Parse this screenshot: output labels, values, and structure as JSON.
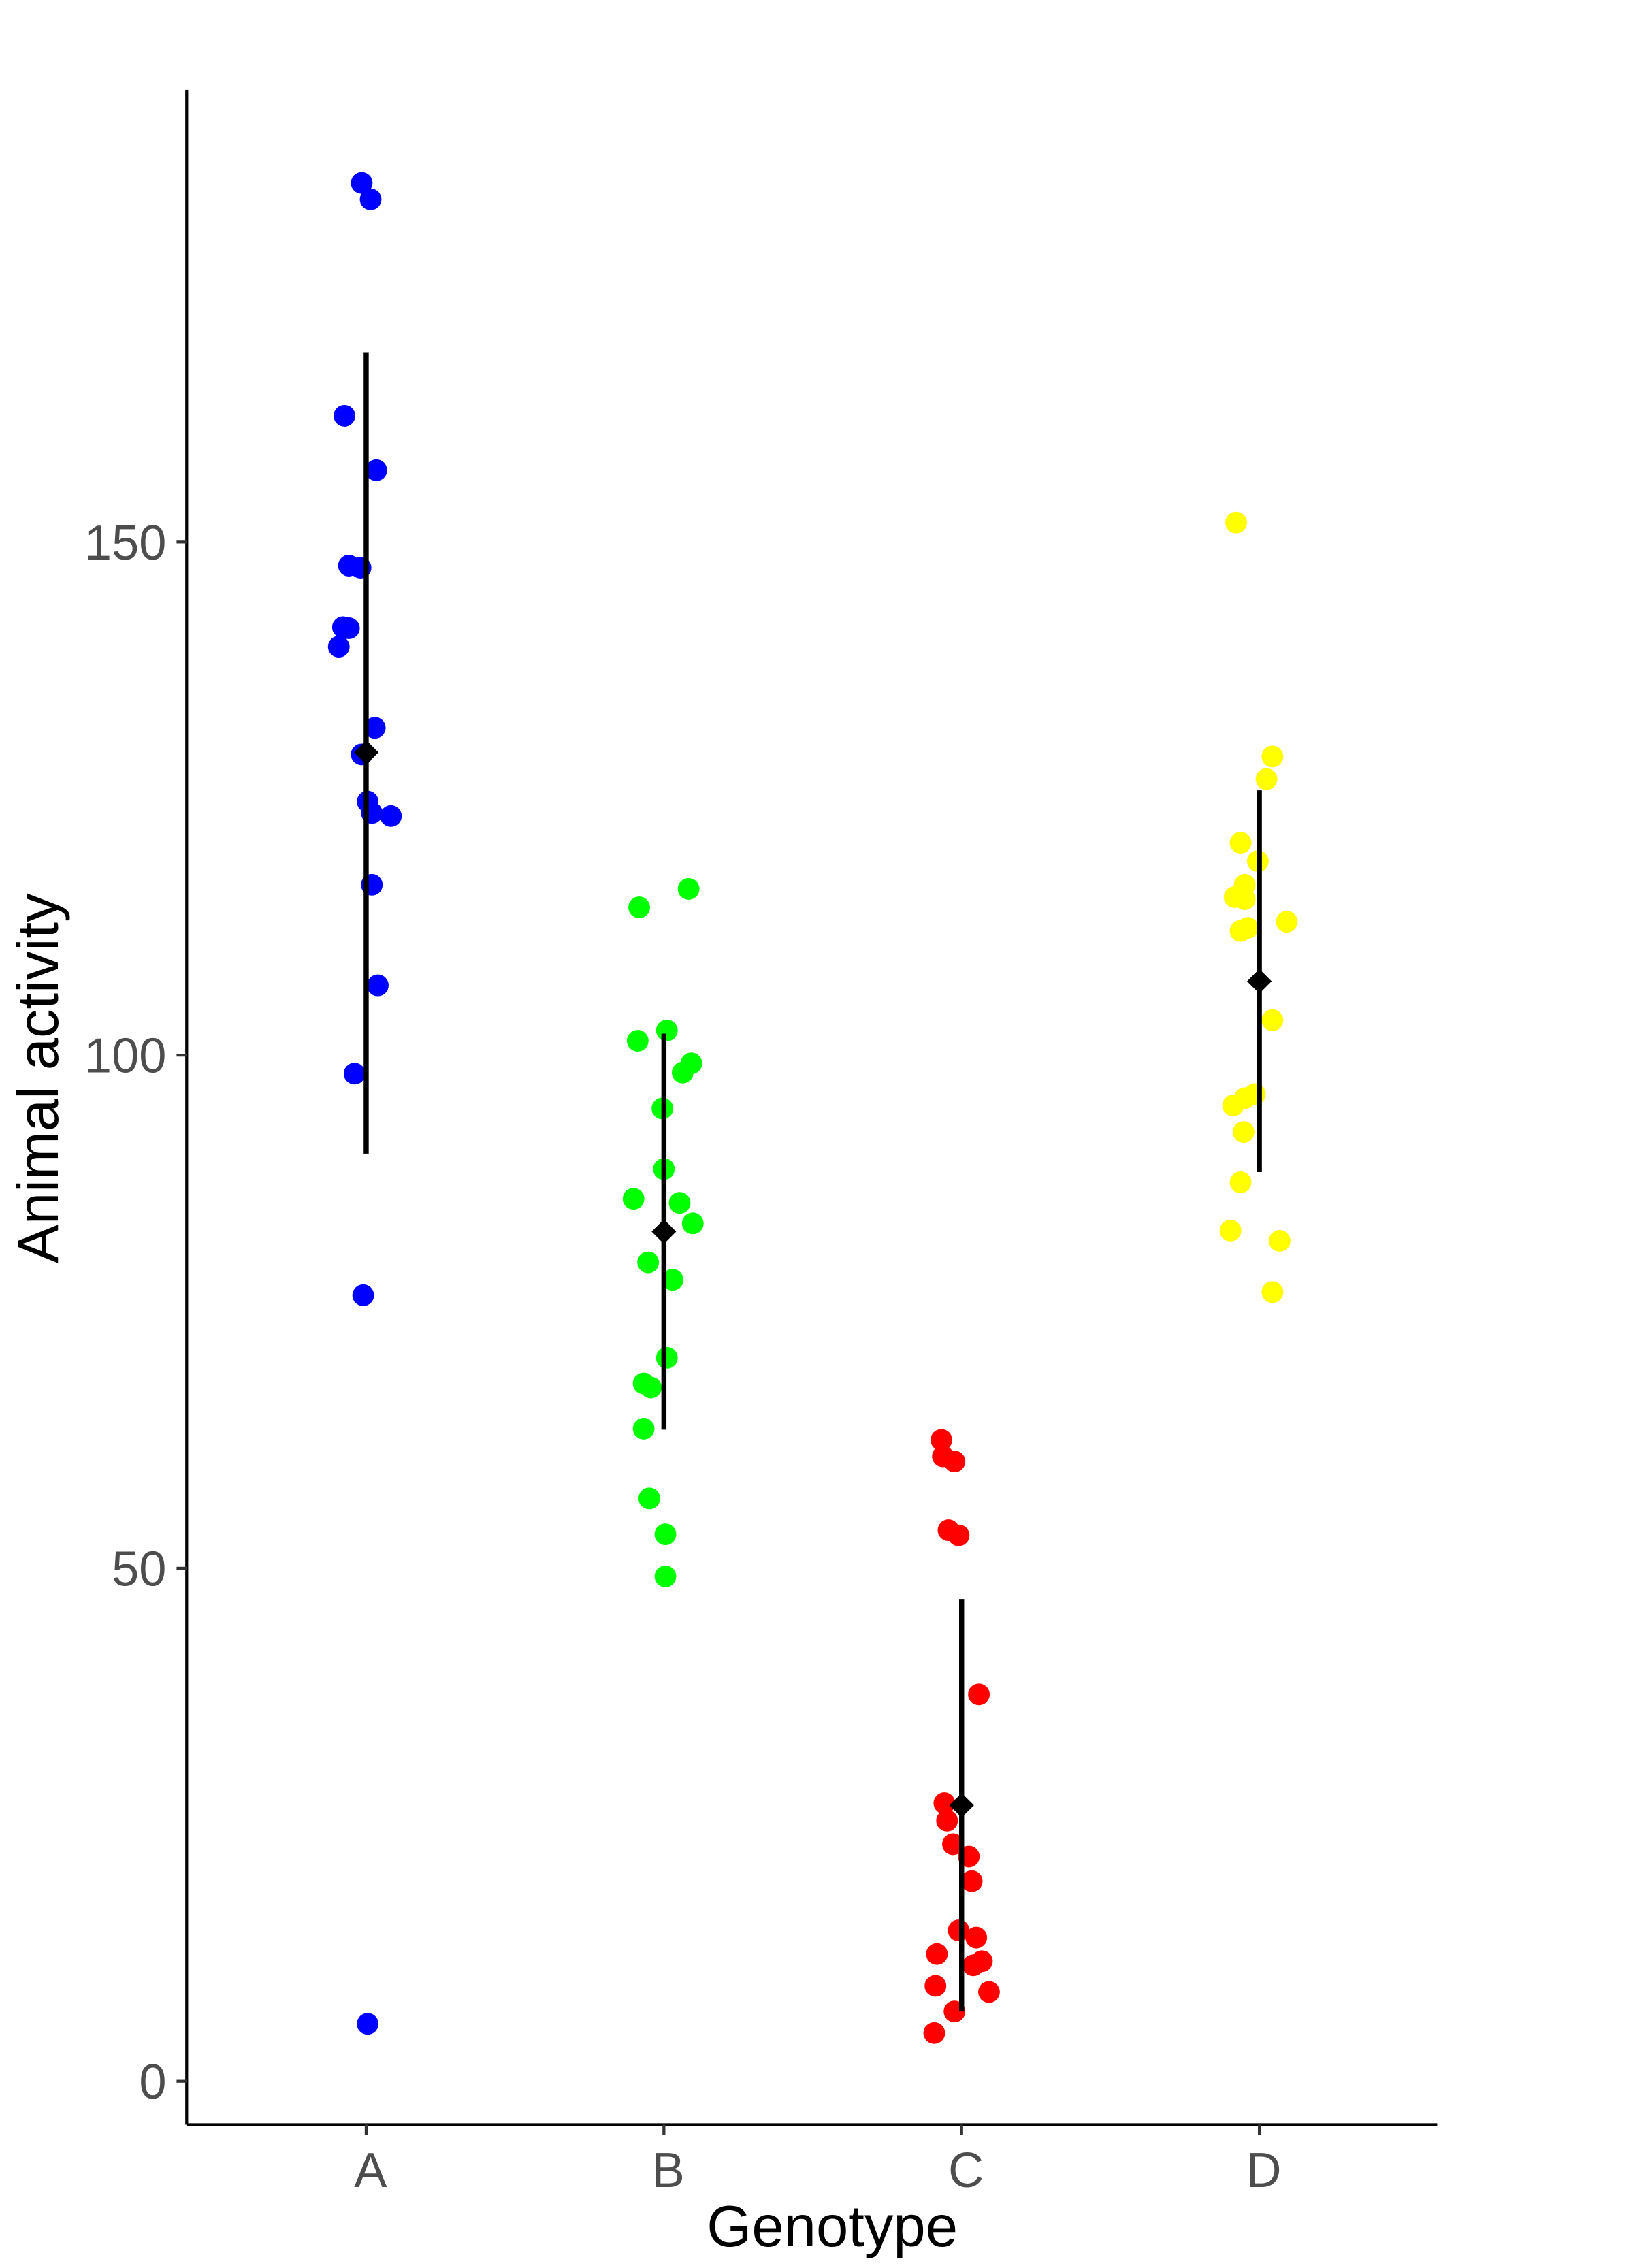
{
  "chart_data": {
    "type": "scatter",
    "subtype": "jittered strip plot with mean and error bars",
    "title": "",
    "xlabel": "Genotype",
    "ylabel": "Animal activity",
    "categories": [
      "A",
      "B",
      "C",
      "D"
    ],
    "yticks": [
      0,
      50,
      100,
      150
    ],
    "ylim": [
      -4,
      194
    ],
    "grid": false,
    "legend": "none",
    "summary_color": "#000000",
    "series": [
      {
        "category": "A",
        "color": "#0000FF",
        "x_jitter": [
          -0.015,
          0.015,
          -0.073,
          0.034,
          -0.058,
          -0.019,
          -0.078,
          -0.058,
          -0.092,
          0.029,
          -0.015,
          0.005,
          0.019,
          0.083,
          0.019,
          0.039,
          -0.039,
          -0.01,
          0.005
        ],
        "values": [
          185.0,
          183.4,
          162.3,
          157.0,
          147.7,
          147.5,
          141.7,
          141.6,
          139.8,
          131.9,
          129.3,
          124.7,
          123.6,
          123.3,
          116.6,
          106.8,
          98.2,
          76.6,
          5.6
        ],
        "mean": 129.5,
        "error_low": 90.4,
        "error_high": 168.5
      },
      {
        "category": "B",
        "color": "#00FF00",
        "x_jitter": [
          0.083,
          -0.083,
          0.01,
          -0.088,
          0.092,
          0.063,
          -0.005,
          0,
          -0.102,
          0.053,
          0.097,
          -0.053,
          0.029,
          0.01,
          -0.068,
          -0.044,
          -0.068,
          -0.049,
          0.005,
          0.005
        ],
        "values": [
          116.2,
          114.4,
          102.4,
          101.4,
          99.2,
          98.3,
          94.8,
          88.9,
          86.0,
          85.6,
          83.6,
          79.8,
          78.1,
          70.5,
          68.0,
          67.6,
          63.6,
          56.8,
          53.3,
          49.2
        ],
        "mean": 82.8,
        "error_low": 63.5,
        "error_high": 102.1
      },
      {
        "category": "C",
        "color": "#FF0000",
        "x_jitter": [
          -0.068,
          -0.063,
          -0.024,
          -0.044,
          -0.01,
          0.058,
          -0.058,
          -0.049,
          -0.029,
          0.024,
          0.034,
          -0.01,
          0.049,
          -0.083,
          0.068,
          0.039,
          -0.088,
          0.092,
          -0.024,
          -0.092
        ],
        "values": [
          62.5,
          60.9,
          60.4,
          53.7,
          53.2,
          37.7,
          27.1,
          25.4,
          23.1,
          21.9,
          19.5,
          14.7,
          14.0,
          12.4,
          11.7,
          11.3,
          9.3,
          8.7,
          6.8,
          4.7
        ],
        "mean": 26.9,
        "error_low": 6.8,
        "error_high": 47.0
      },
      {
        "category": "D",
        "color": "#FFFF00",
        "x_jitter": [
          -0.078,
          0.044,
          0.024,
          -0.063,
          -0.005,
          -0.049,
          -0.083,
          -0.049,
          0.092,
          -0.039,
          -0.063,
          0.044,
          -0.015,
          -0.049,
          -0.088,
          -0.053,
          -0.063,
          -0.097,
          0.068,
          0.044
        ],
        "values": [
          151.9,
          129.1,
          126.9,
          120.7,
          118.9,
          116.6,
          115.4,
          115.2,
          113.0,
          112.4,
          112.1,
          103.4,
          96.2,
          95.8,
          95.1,
          92.5,
          87.6,
          82.9,
          81.9,
          76.9
        ],
        "mean": 107.2,
        "error_low": 88.6,
        "error_high": 125.8
      }
    ]
  }
}
